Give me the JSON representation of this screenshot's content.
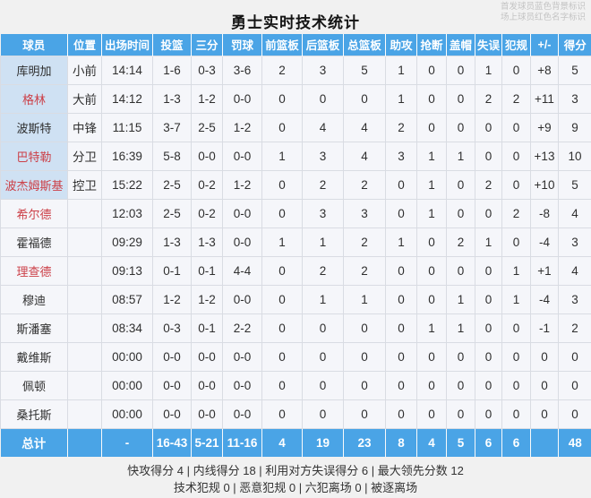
{
  "title": "勇士实时技术统计",
  "legend": {
    "line1": "首发球员蓝色背景标识",
    "line2": "场上球员红色名字标识"
  },
  "colors": {
    "header_blue": "#4aa4e6",
    "starter_name_cell_bg": "#cfe1f3",
    "on_court_name_red": "#cc4048",
    "row_bg": "#f5f6fa",
    "grid_line": "#d9dce3"
  },
  "table": {
    "columns": [
      "球员",
      "位置",
      "出场时间",
      "投篮",
      "三分",
      "罚球",
      "前篮板",
      "后篮板",
      "总篮板",
      "助攻",
      "抢断",
      "盖帽",
      "失误",
      "犯规",
      "+/-",
      "得分"
    ],
    "players": [
      {
        "name": "库明加",
        "starter": true,
        "on_court": false,
        "stats": [
          "小前",
          "14:14",
          "1-6",
          "0-3",
          "3-6",
          "2",
          "3",
          "5",
          "1",
          "0",
          "0",
          "1",
          "0",
          "+8",
          "5"
        ]
      },
      {
        "name": "格林",
        "starter": true,
        "on_court": true,
        "stats": [
          "大前",
          "14:12",
          "1-3",
          "1-2",
          "0-0",
          "0",
          "0",
          "0",
          "1",
          "0",
          "0",
          "2",
          "2",
          "+11",
          "3"
        ]
      },
      {
        "name": "波斯特",
        "starter": true,
        "on_court": false,
        "stats": [
          "中锋",
          "11:15",
          "3-7",
          "2-5",
          "1-2",
          "0",
          "4",
          "4",
          "2",
          "0",
          "0",
          "0",
          "0",
          "+9",
          "9"
        ]
      },
      {
        "name": "巴特勒",
        "starter": true,
        "on_court": true,
        "stats": [
          "分卫",
          "16:39",
          "5-8",
          "0-0",
          "0-0",
          "1",
          "3",
          "4",
          "3",
          "1",
          "1",
          "0",
          "0",
          "+13",
          "10"
        ]
      },
      {
        "name": "波杰姆斯基",
        "starter": true,
        "on_court": true,
        "stats": [
          "控卫",
          "15:22",
          "2-5",
          "0-2",
          "1-2",
          "0",
          "2",
          "2",
          "0",
          "1",
          "0",
          "2",
          "0",
          "+10",
          "5"
        ]
      },
      {
        "name": "希尔德",
        "starter": false,
        "on_court": true,
        "stats": [
          "",
          "12:03",
          "2-5",
          "0-2",
          "0-0",
          "0",
          "3",
          "3",
          "0",
          "1",
          "0",
          "0",
          "2",
          "-8",
          "4"
        ]
      },
      {
        "name": "霍福德",
        "starter": false,
        "on_court": false,
        "stats": [
          "",
          "09:29",
          "1-3",
          "1-3",
          "0-0",
          "1",
          "1",
          "2",
          "1",
          "0",
          "2",
          "1",
          "0",
          "-4",
          "3"
        ]
      },
      {
        "name": "理查德",
        "starter": false,
        "on_court": true,
        "stats": [
          "",
          "09:13",
          "0-1",
          "0-1",
          "4-4",
          "0",
          "2",
          "2",
          "0",
          "0",
          "0",
          "0",
          "1",
          "+1",
          "4"
        ]
      },
      {
        "name": "穆迪",
        "starter": false,
        "on_court": false,
        "stats": [
          "",
          "08:57",
          "1-2",
          "1-2",
          "0-0",
          "0",
          "1",
          "1",
          "0",
          "0",
          "1",
          "0",
          "1",
          "-4",
          "3"
        ]
      },
      {
        "name": "斯潘塞",
        "starter": false,
        "on_court": false,
        "stats": [
          "",
          "08:34",
          "0-3",
          "0-1",
          "2-2",
          "0",
          "0",
          "0",
          "0",
          "1",
          "1",
          "0",
          "0",
          "-1",
          "2"
        ]
      },
      {
        "name": "戴维斯",
        "starter": false,
        "on_court": false,
        "stats": [
          "",
          "00:00",
          "0-0",
          "0-0",
          "0-0",
          "0",
          "0",
          "0",
          "0",
          "0",
          "0",
          "0",
          "0",
          "0",
          "0"
        ]
      },
      {
        "name": "佩顿",
        "starter": false,
        "on_court": false,
        "stats": [
          "",
          "00:00",
          "0-0",
          "0-0",
          "0-0",
          "0",
          "0",
          "0",
          "0",
          "0",
          "0",
          "0",
          "0",
          "0",
          "0"
        ]
      },
      {
        "name": "桑托斯",
        "starter": false,
        "on_court": false,
        "stats": [
          "",
          "00:00",
          "0-0",
          "0-0",
          "0-0",
          "0",
          "0",
          "0",
          "0",
          "0",
          "0",
          "0",
          "0",
          "0",
          "0"
        ]
      }
    ],
    "total": {
      "name": "总计",
      "stats": [
        "",
        "-",
        "16-43",
        "5-21",
        "11-16",
        "4",
        "19",
        "23",
        "8",
        "4",
        "5",
        "6",
        "6",
        "",
        "48"
      ]
    }
  },
  "footer": {
    "line1": "快攻得分 4 | 内线得分 18 | 利用对方失误得分 6 | 最大领先分数 12",
    "line2": "技术犯规 0 | 恶意犯规 0 | 六犯离场 0 | 被逐离场"
  }
}
